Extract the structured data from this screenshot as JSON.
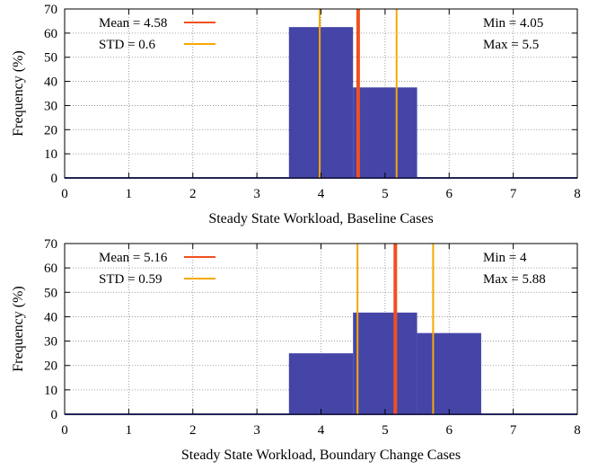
{
  "chart_data": [
    {
      "type": "bar",
      "xlabel": "Steady State Workload, Baseline Cases",
      "ylabel": "Frequency (%)",
      "xlim": [
        0,
        8
      ],
      "ylim": [
        0,
        70
      ],
      "xticks": [
        "0",
        "1",
        "2",
        "3",
        "4",
        "5",
        "6",
        "7",
        "8"
      ],
      "yticks": [
        "0",
        "10",
        "20",
        "30",
        "40",
        "50",
        "60",
        "70"
      ],
      "grid": true,
      "bar_color": "#4545a8",
      "bins": [
        {
          "x0": 3.5,
          "x1": 4.5,
          "value": 62.5
        },
        {
          "x0": 4.5,
          "x1": 5.5,
          "value": 37.5
        }
      ],
      "mean_line": {
        "x": 4.58,
        "color": "#f05020"
      },
      "std_lines": {
        "x": [
          3.98,
          5.18
        ],
        "color": "#f5a800"
      },
      "legend": {
        "position": "top-left",
        "mean_label": "Mean = 4.58",
        "std_label": "STD = 0.6"
      },
      "annotation": {
        "position": "top-right",
        "min_label": "Min = 4.05",
        "max_label": "Max = 5.5"
      }
    },
    {
      "type": "bar",
      "xlabel": "Steady State Workload, Boundary Change Cases",
      "ylabel": "Frequency (%)",
      "xlim": [
        0,
        8
      ],
      "ylim": [
        0,
        70
      ],
      "xticks": [
        "0",
        "1",
        "2",
        "3",
        "4",
        "5",
        "6",
        "7",
        "8"
      ],
      "yticks": [
        "0",
        "10",
        "20",
        "30",
        "40",
        "50",
        "60",
        "70"
      ],
      "grid": true,
      "bar_color": "#4545a8",
      "bins": [
        {
          "x0": 3.5,
          "x1": 4.5,
          "value": 25
        },
        {
          "x0": 4.5,
          "x1": 5.5,
          "value": 41.7
        },
        {
          "x0": 5.5,
          "x1": 6.5,
          "value": 33.3
        }
      ],
      "mean_line": {
        "x": 5.16,
        "color": "#f05020"
      },
      "std_lines": {
        "x": [
          4.57,
          5.75
        ],
        "color": "#f5a800"
      },
      "legend": {
        "position": "top-left",
        "mean_label": "Mean = 5.16",
        "std_label": "STD = 0.59"
      },
      "annotation": {
        "position": "top-right",
        "min_label": "Min = 4",
        "max_label": "Max = 5.88"
      }
    }
  ]
}
